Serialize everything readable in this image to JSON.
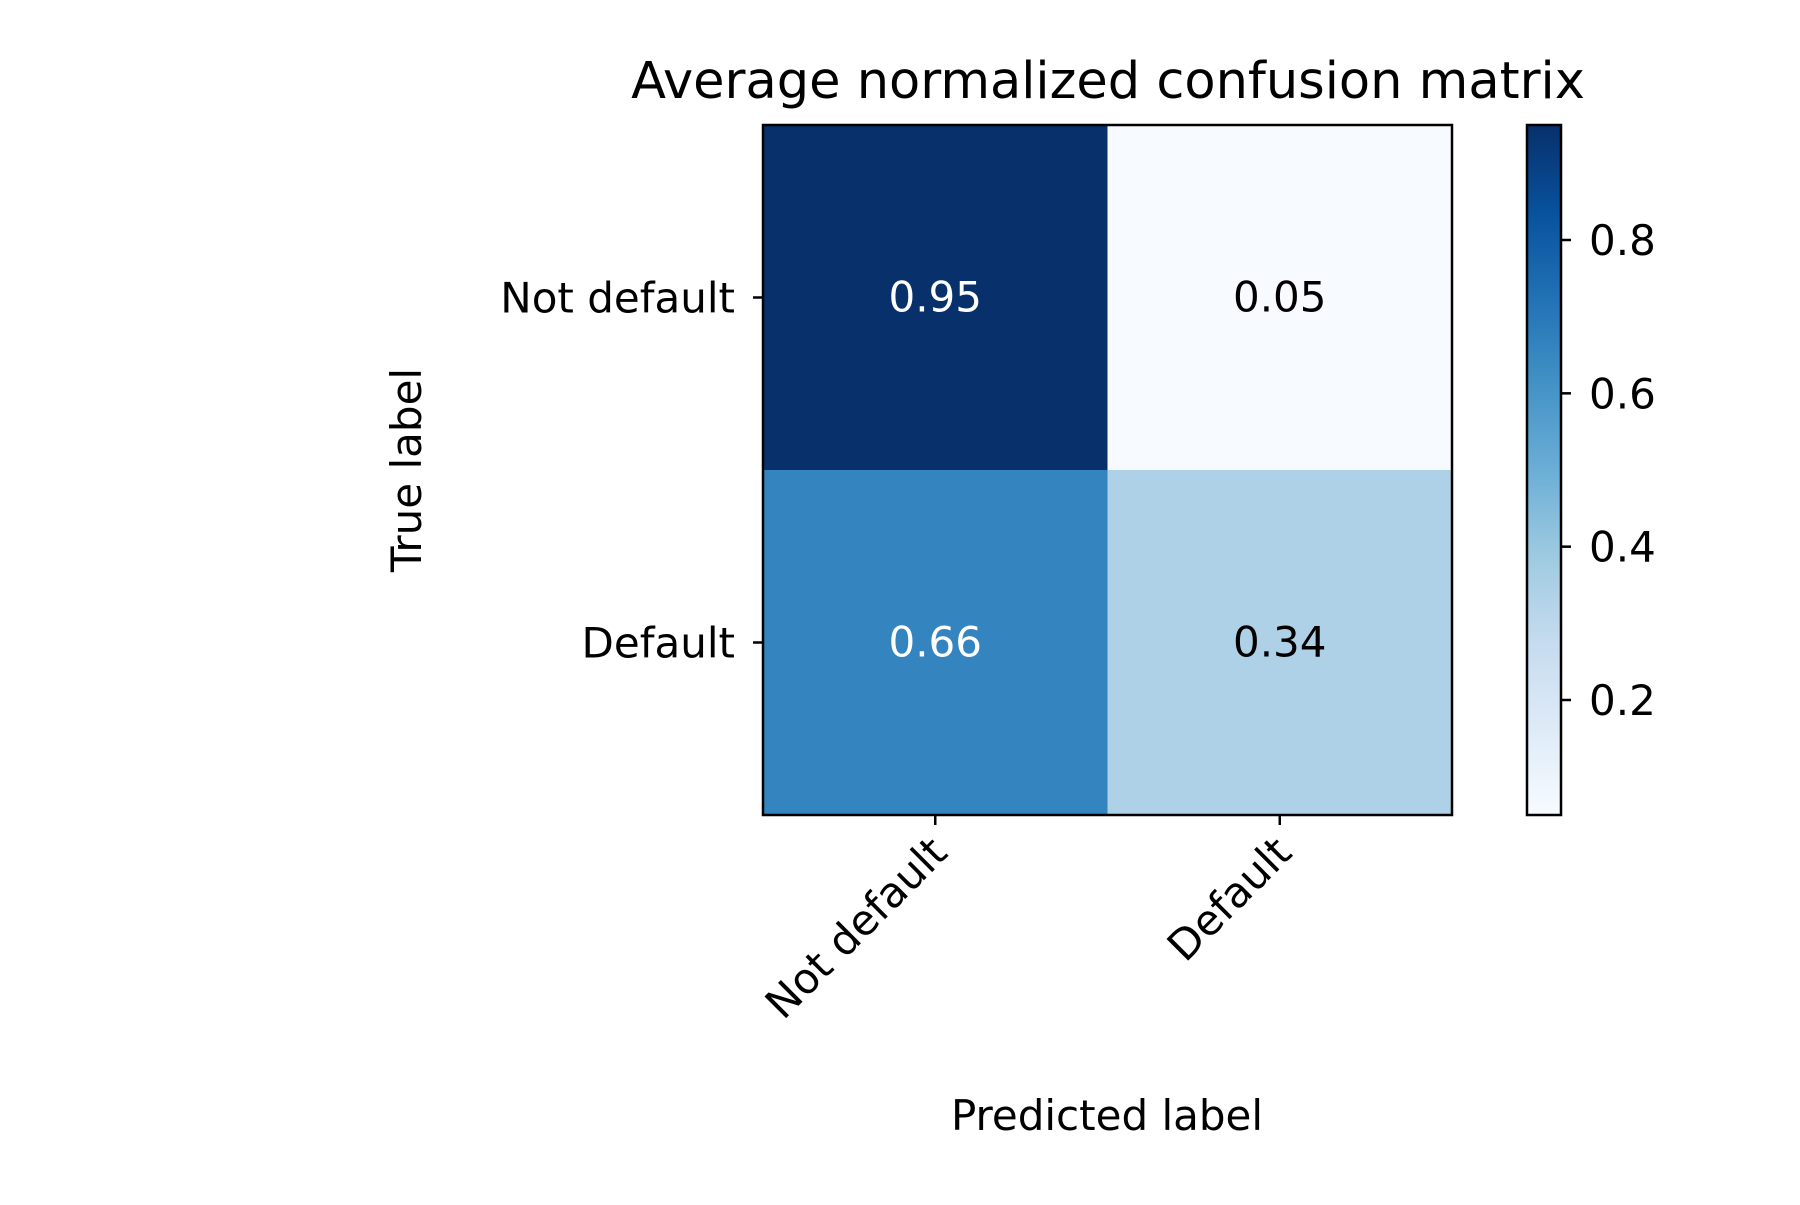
{
  "chart_data": {
    "type": "heatmap",
    "title": "Average normalized confusion matrix",
    "xlabel": "Predicted label",
    "ylabel": "True label",
    "x_categories": [
      "Not default",
      "Default"
    ],
    "y_categories": [
      "Not default",
      "Default"
    ],
    "values": [
      [
        0.95,
        0.05
      ],
      [
        0.66,
        0.34
      ]
    ],
    "value_labels": [
      [
        "0.95",
        "0.05"
      ],
      [
        "0.66",
        "0.34"
      ]
    ],
    "colormap": "Blues",
    "colorbar": {
      "range": [
        0.05,
        0.95
      ],
      "ticks": [
        0.2,
        0.4,
        0.6,
        0.8
      ],
      "tick_labels": [
        "0.2",
        "0.4",
        "0.6",
        "0.8"
      ]
    },
    "grid": false,
    "legend": "colorbar-right",
    "colors": {
      "low": "#f7fbff",
      "high": "#08306b"
    }
  }
}
